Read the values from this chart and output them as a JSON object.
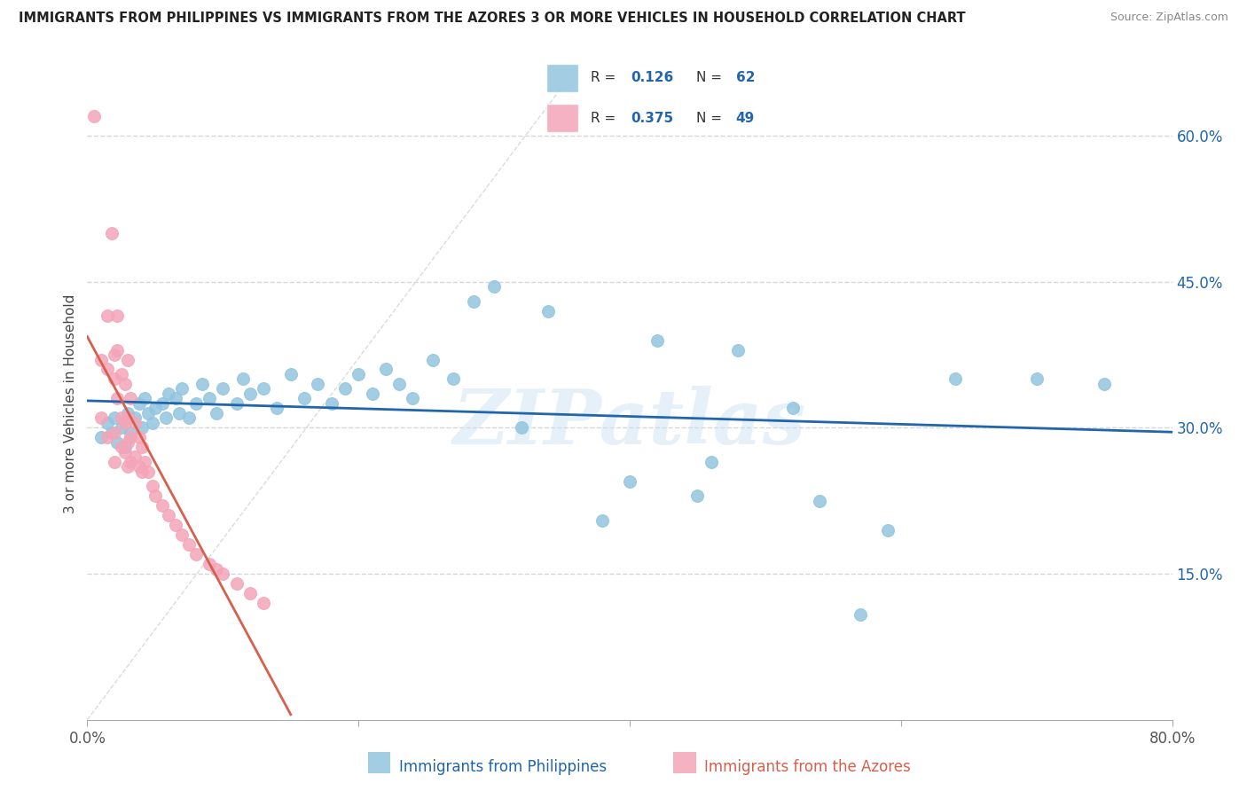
{
  "title": "IMMIGRANTS FROM PHILIPPINES VS IMMIGRANTS FROM THE AZORES 3 OR MORE VEHICLES IN HOUSEHOLD CORRELATION CHART",
  "source": "Source: ZipAtlas.com",
  "xlabel_bottom": [
    "Immigrants from Philippines",
    "Immigrants from the Azores"
  ],
  "ylabel": "3 or more Vehicles in Household",
  "xmin": 0.0,
  "xmax": 0.8,
  "ymin": 0.0,
  "ymax": 0.65,
  "y_ticks_right": [
    0.15,
    0.3,
    0.45,
    0.6
  ],
  "y_tick_labels_right": [
    "15.0%",
    "30.0%",
    "45.0%",
    "60.0%"
  ],
  "blue_color": "#92c5de",
  "pink_color": "#f4a5b8",
  "blue_line_color": "#2166ac",
  "pink_line_color": "#d6604d",
  "blue_scatter": [
    [
      0.01,
      0.29
    ],
    [
      0.015,
      0.305
    ],
    [
      0.018,
      0.295
    ],
    [
      0.02,
      0.31
    ],
    [
      0.022,
      0.285
    ],
    [
      0.025,
      0.3
    ],
    [
      0.028,
      0.28
    ],
    [
      0.03,
      0.315
    ],
    [
      0.032,
      0.295
    ],
    [
      0.035,
      0.31
    ],
    [
      0.038,
      0.325
    ],
    [
      0.04,
      0.3
    ],
    [
      0.042,
      0.33
    ],
    [
      0.045,
      0.315
    ],
    [
      0.048,
      0.305
    ],
    [
      0.05,
      0.32
    ],
    [
      0.055,
      0.325
    ],
    [
      0.058,
      0.31
    ],
    [
      0.06,
      0.335
    ],
    [
      0.065,
      0.33
    ],
    [
      0.068,
      0.315
    ],
    [
      0.07,
      0.34
    ],
    [
      0.075,
      0.31
    ],
    [
      0.08,
      0.325
    ],
    [
      0.085,
      0.345
    ],
    [
      0.09,
      0.33
    ],
    [
      0.095,
      0.315
    ],
    [
      0.1,
      0.34
    ],
    [
      0.11,
      0.325
    ],
    [
      0.115,
      0.35
    ],
    [
      0.12,
      0.335
    ],
    [
      0.13,
      0.34
    ],
    [
      0.14,
      0.32
    ],
    [
      0.15,
      0.355
    ],
    [
      0.16,
      0.33
    ],
    [
      0.17,
      0.345
    ],
    [
      0.18,
      0.325
    ],
    [
      0.19,
      0.34
    ],
    [
      0.2,
      0.355
    ],
    [
      0.21,
      0.335
    ],
    [
      0.22,
      0.36
    ],
    [
      0.23,
      0.345
    ],
    [
      0.24,
      0.33
    ],
    [
      0.255,
      0.37
    ],
    [
      0.27,
      0.35
    ],
    [
      0.285,
      0.43
    ],
    [
      0.3,
      0.445
    ],
    [
      0.32,
      0.3
    ],
    [
      0.34,
      0.42
    ],
    [
      0.38,
      0.205
    ],
    [
      0.4,
      0.245
    ],
    [
      0.42,
      0.39
    ],
    [
      0.45,
      0.23
    ],
    [
      0.46,
      0.265
    ],
    [
      0.48,
      0.38
    ],
    [
      0.52,
      0.32
    ],
    [
      0.54,
      0.225
    ],
    [
      0.57,
      0.108
    ],
    [
      0.59,
      0.195
    ],
    [
      0.64,
      0.35
    ],
    [
      0.7,
      0.35
    ],
    [
      0.75,
      0.345
    ]
  ],
  "pink_scatter": [
    [
      0.005,
      0.62
    ],
    [
      0.01,
      0.37
    ],
    [
      0.01,
      0.31
    ],
    [
      0.015,
      0.415
    ],
    [
      0.015,
      0.36
    ],
    [
      0.015,
      0.29
    ],
    [
      0.018,
      0.5
    ],
    [
      0.02,
      0.375
    ],
    [
      0.02,
      0.35
    ],
    [
      0.02,
      0.295
    ],
    [
      0.02,
      0.265
    ],
    [
      0.022,
      0.415
    ],
    [
      0.022,
      0.38
    ],
    [
      0.022,
      0.33
    ],
    [
      0.025,
      0.355
    ],
    [
      0.025,
      0.31
    ],
    [
      0.025,
      0.28
    ],
    [
      0.028,
      0.345
    ],
    [
      0.028,
      0.305
    ],
    [
      0.028,
      0.275
    ],
    [
      0.03,
      0.37
    ],
    [
      0.03,
      0.31
    ],
    [
      0.03,
      0.285
    ],
    [
      0.03,
      0.26
    ],
    [
      0.032,
      0.33
    ],
    [
      0.032,
      0.29
    ],
    [
      0.032,
      0.265
    ],
    [
      0.035,
      0.305
    ],
    [
      0.035,
      0.27
    ],
    [
      0.038,
      0.29
    ],
    [
      0.038,
      0.26
    ],
    [
      0.04,
      0.28
    ],
    [
      0.04,
      0.255
    ],
    [
      0.042,
      0.265
    ],
    [
      0.045,
      0.255
    ],
    [
      0.048,
      0.24
    ],
    [
      0.05,
      0.23
    ],
    [
      0.055,
      0.22
    ],
    [
      0.06,
      0.21
    ],
    [
      0.065,
      0.2
    ],
    [
      0.07,
      0.19
    ],
    [
      0.075,
      0.18
    ],
    [
      0.08,
      0.17
    ],
    [
      0.09,
      0.16
    ],
    [
      0.095,
      0.155
    ],
    [
      0.1,
      0.15
    ],
    [
      0.11,
      0.14
    ],
    [
      0.12,
      0.13
    ],
    [
      0.13,
      0.12
    ]
  ],
  "watermark": "ZIPatlas",
  "background_color": "#ffffff",
  "grid_color": "#cccccc"
}
